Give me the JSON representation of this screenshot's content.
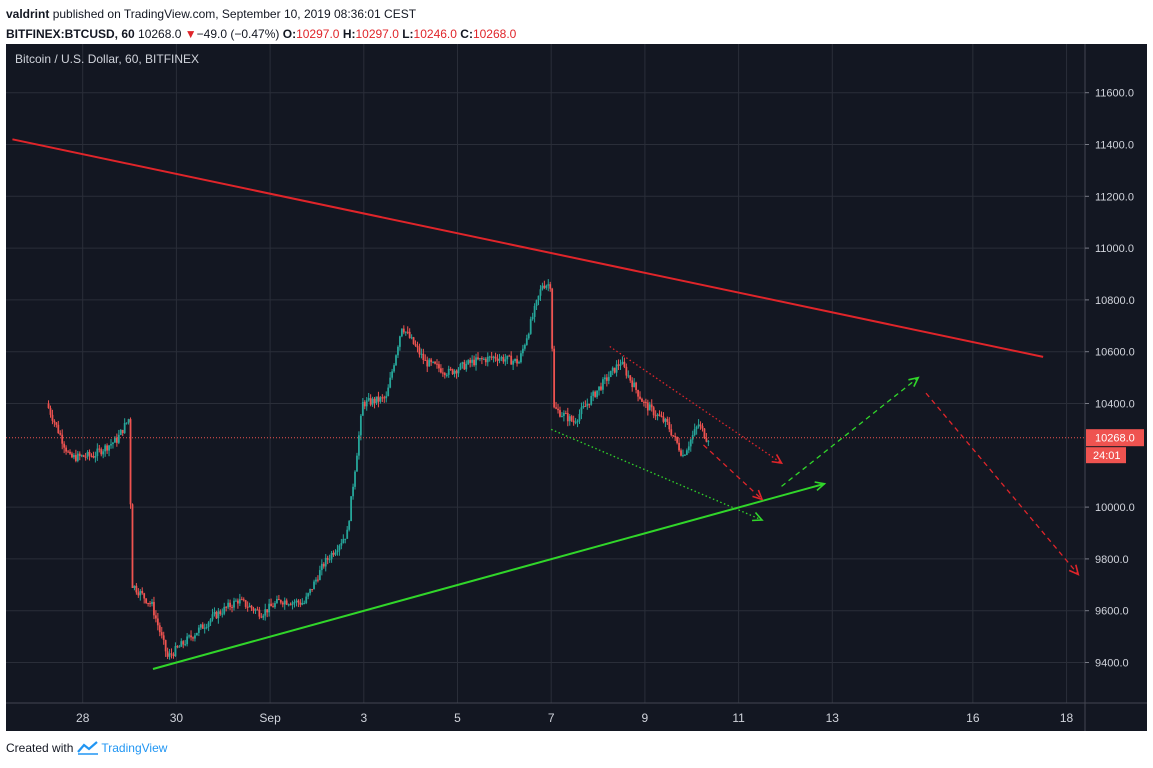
{
  "header": {
    "author": "valdrint",
    "published_text": "published on TradingView.com, September 10, 2019 08:36:01 CEST",
    "symbol": "BITFINEX:BTCUSD, 60",
    "last": "10268.0",
    "change_arrow": "▼",
    "change": "−49.0 (−0.47%)",
    "o_label": "O:",
    "o": "10297.0",
    "h_label": "H:",
    "h": "10297.0",
    "l_label": "L:",
    "l": "10246.0",
    "c_label": "C:",
    "c": "10268.0"
  },
  "chart_title": "Bitcoin / U.S. Dollar, 60, BITFINEX",
  "footer": {
    "created_with": "Created with",
    "brand": "TradingView",
    "logo_icon": "tradingview-logo-icon"
  },
  "colors": {
    "background": "#131722",
    "up": "#26a69a",
    "down": "#ef5350",
    "resistance": "#e0252a",
    "support": "#31d62a",
    "price_line": "#ef5350",
    "axis_text": "#d1d4dc"
  },
  "chart_data": {
    "type": "candlestick",
    "title": "Bitcoin / U.S. Dollar, 60, BITFINEX",
    "ylim": [
      9220,
      11770
    ],
    "y_ticks": [
      "11600.0",
      "11400.0",
      "11200.0",
      "11000.0",
      "10800.0",
      "10600.0",
      "10400.0",
      "10000.0",
      "9800.0",
      "9600.0",
      "9400.0"
    ],
    "x_ticks": [
      "28",
      "30",
      "Sep",
      "3",
      "5",
      "7",
      "9",
      "11",
      "13",
      "16",
      "18"
    ],
    "last_price": "10268.0",
    "countdown": "24:01",
    "price_path": [
      [
        "Aug 27 06:00",
        10400
      ],
      [
        "Aug 27 18:00",
        10190
      ],
      [
        "Aug 28 06:00",
        10200
      ],
      [
        "Aug 28 18:00",
        10260
      ],
      [
        "Aug 29 00:00",
        10340
      ],
      [
        "Aug 29 02:00",
        9700
      ],
      [
        "Aug 29 12:00",
        9620
      ],
      [
        "Aug 29 20:00",
        9420
      ],
      [
        "Aug 30 08:00",
        9500
      ],
      [
        "Aug 30 20:00",
        9580
      ],
      [
        "Aug 31 08:00",
        9640
      ],
      [
        "Aug 31 20:00",
        9590
      ],
      [
        "Sep 1 06:00",
        9640
      ],
      [
        "Sep 1 18:00",
        9630
      ],
      [
        "Sep 2 04:00",
        9780
      ],
      [
        "Sep 2 16:00",
        9900
      ],
      [
        "Sep 3 00:00",
        10400
      ],
      [
        "Sep 3 12:00",
        10420
      ],
      [
        "Sep 3 20:00",
        10700
      ],
      [
        "Sep 4 08:00",
        10560
      ],
      [
        "Sep 4 20:00",
        10520
      ],
      [
        "Sep 5 08:00",
        10560
      ],
      [
        "Sep 5 20:00",
        10580
      ],
      [
        "Sep 6 08:00",
        10560
      ],
      [
        "Sep 6 20:00",
        10860
      ],
      [
        "Sep 7 00:00",
        10860
      ],
      [
        "Sep 7 02:00",
        10380
      ],
      [
        "Sep 7 12:00",
        10330
      ],
      [
        "Sep 8 00:00",
        10450
      ],
      [
        "Sep 8 12:00",
        10560
      ],
      [
        "Sep 9 00:00",
        10400
      ],
      [
        "Sep 9 12:00",
        10320
      ],
      [
        "Sep 9 20:00",
        10200
      ],
      [
        "Sep 10 04:00",
        10320
      ],
      [
        "Sep 10 08:00",
        10268
      ]
    ],
    "drawings": [
      {
        "name": "resistance-line",
        "style": "solid",
        "color": "#e0252a",
        "from": [
          "Aug 26 12:00",
          11420
        ],
        "to": [
          "Sep 17 12:00",
          10580
        ]
      },
      {
        "name": "support-line",
        "style": "solid-arrow",
        "color": "#31d62a",
        "from": [
          "Aug 29 12:00",
          9375
        ],
        "to": [
          "Sep 12 20:00",
          10090
        ]
      },
      {
        "name": "projection-down-1",
        "style": "dashed-arrow",
        "color": "#e0252a",
        "from": [
          "Sep 10 06:00",
          10240
        ],
        "to": [
          "Sep 11 12:00",
          10030
        ]
      },
      {
        "name": "projection-up",
        "style": "dashed-arrow",
        "color": "#31d62a",
        "from": [
          "Sep 11 22:00",
          10080
        ],
        "to": [
          "Sep 14 20:00",
          10500
        ]
      },
      {
        "name": "projection-down-2",
        "style": "dashed-arrow",
        "color": "#e0252a",
        "from": [
          "Sep 15 00:00",
          10440
        ],
        "to": [
          "Sep 18 06:00",
          9740
        ]
      },
      {
        "name": "channel-upper",
        "style": "dotted-arrow",
        "color": "#e0252a",
        "from": [
          "Sep 8 06:00",
          10620
        ],
        "to": [
          "Sep 11 22:00",
          10170
        ]
      },
      {
        "name": "channel-lower",
        "style": "dotted-arrow",
        "color": "#31d62a",
        "from": [
          "Sep 7 00:00",
          10300
        ],
        "to": [
          "Sep 11 12:00",
          9950
        ]
      }
    ]
  }
}
